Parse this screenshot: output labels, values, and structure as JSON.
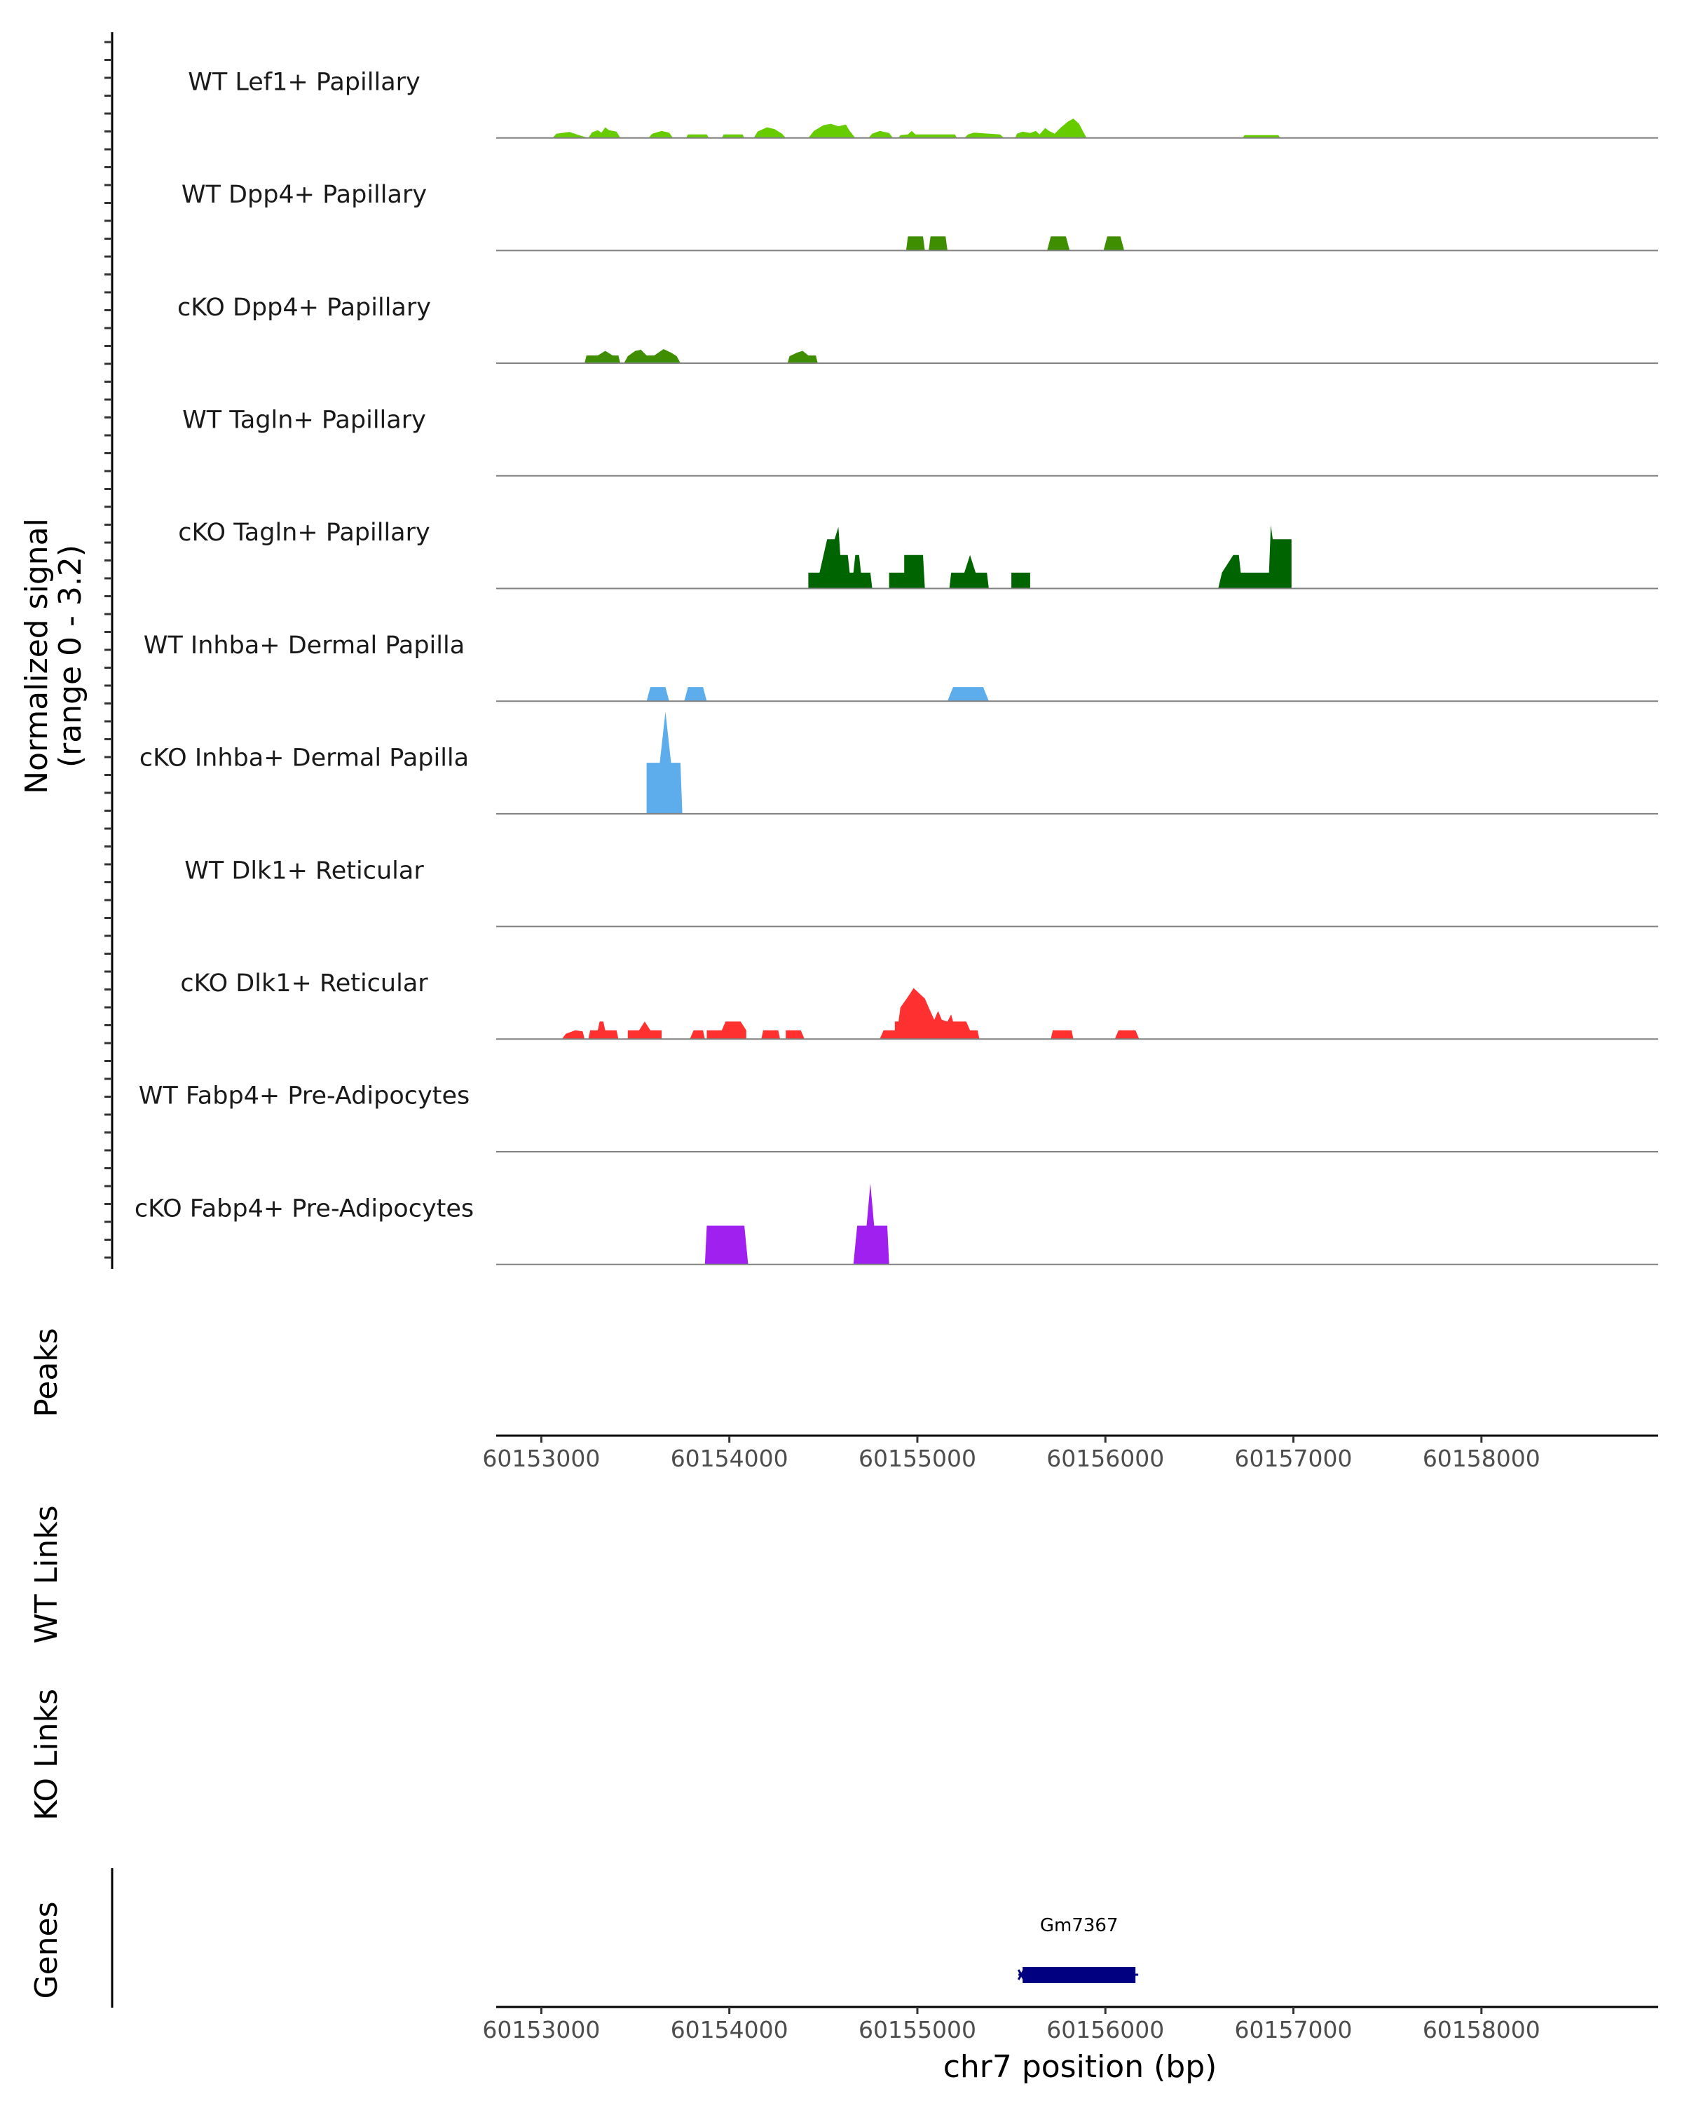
{
  "chart_data": {
    "type": "area",
    "chromosome": "chr7",
    "xlim": [
      60152760,
      60158940
    ],
    "signal_range": [
      0,
      3.2
    ],
    "y_axis_label": [
      "Normalized signal",
      "(range 0 - 3.2)"
    ],
    "x_axis_title": "chr7 position (bp)",
    "x_ticks": [
      60153000,
      60154000,
      60155000,
      60156000,
      60157000,
      60158000
    ],
    "x_tick_labels": [
      "60153000",
      "60154000",
      "60155000",
      "60156000",
      "60157000",
      "60158000"
    ],
    "section_labels": {
      "peaks": "Peaks",
      "wt_links": "WT Links",
      "ko_links": "KO Links",
      "genes": "Genes"
    },
    "tracks": [
      {
        "name": "WT Lef1+ Papillary",
        "color": "#66CC00",
        "points": [
          [
            60153060,
            0
          ],
          [
            60153080,
            0.12
          ],
          [
            60153150,
            0.17
          ],
          [
            60153200,
            0.08
          ],
          [
            60153250,
            0
          ],
          [
            60153270,
            0.16
          ],
          [
            60153300,
            0.22
          ],
          [
            60153320,
            0.15
          ],
          [
            60153340,
            0.3
          ],
          [
            60153360,
            0.22
          ],
          [
            60153400,
            0.18
          ],
          [
            60153420,
            0
          ],
          [
            60153570,
            0
          ],
          [
            60153590,
            0.12
          ],
          [
            60153640,
            0.2
          ],
          [
            60153680,
            0.15
          ],
          [
            60153700,
            0
          ],
          [
            60153770,
            0
          ],
          [
            60153780,
            0.1
          ],
          [
            60153880,
            0.1
          ],
          [
            60153890,
            0
          ],
          [
            60153960,
            0
          ],
          [
            60153970,
            0.1
          ],
          [
            60154070,
            0.1
          ],
          [
            60154080,
            0
          ],
          [
            60154130,
            0
          ],
          [
            60154150,
            0.18
          ],
          [
            60154200,
            0.3
          ],
          [
            60154240,
            0.25
          ],
          [
            60154280,
            0.12
          ],
          [
            60154300,
            0
          ],
          [
            60154420,
            0
          ],
          [
            60154450,
            0.2
          ],
          [
            60154500,
            0.36
          ],
          [
            60154540,
            0.4
          ],
          [
            60154580,
            0.33
          ],
          [
            60154620,
            0.38
          ],
          [
            60154640,
            0.2
          ],
          [
            60154670,
            0
          ],
          [
            60154740,
            0
          ],
          [
            60154760,
            0.12
          ],
          [
            60154800,
            0.2
          ],
          [
            60154850,
            0.14
          ],
          [
            60154870,
            0
          ],
          [
            60154900,
            0
          ],
          [
            60154910,
            0.08
          ],
          [
            60154950,
            0.1
          ],
          [
            60154970,
            0.2
          ],
          [
            60154990,
            0.1
          ],
          [
            60155200,
            0.1
          ],
          [
            60155210,
            0
          ],
          [
            60155250,
            0
          ],
          [
            60155270,
            0.1
          ],
          [
            60155300,
            0.15
          ],
          [
            60155440,
            0.1
          ],
          [
            60155460,
            0
          ],
          [
            60155520,
            0
          ],
          [
            60155530,
            0.12
          ],
          [
            60155560,
            0.18
          ],
          [
            60155600,
            0.14
          ],
          [
            60155630,
            0.2
          ],
          [
            60155650,
            0.1
          ],
          [
            60155680,
            0.28
          ],
          [
            60155700,
            0.2
          ],
          [
            60155730,
            0.12
          ],
          [
            60155760,
            0.28
          ],
          [
            60155800,
            0.46
          ],
          [
            60155830,
            0.55
          ],
          [
            60155860,
            0.4
          ],
          [
            60155880,
            0.2
          ],
          [
            60155900,
            0
          ],
          [
            60156730,
            0
          ],
          [
            60156740,
            0.08
          ],
          [
            60156920,
            0.08
          ],
          [
            60156930,
            0
          ]
        ]
      },
      {
        "name": "WT Dpp4+ Papillary",
        "color": "#3E8E00",
        "points": [
          [
            60154940,
            0
          ],
          [
            60154950,
            0.4
          ],
          [
            60155030,
            0.4
          ],
          [
            60155040,
            0
          ],
          [
            60155060,
            0
          ],
          [
            60155070,
            0.4
          ],
          [
            60155150,
            0.4
          ],
          [
            60155160,
            0
          ],
          [
            60155690,
            0
          ],
          [
            60155710,
            0.4
          ],
          [
            60155790,
            0.4
          ],
          [
            60155810,
            0
          ],
          [
            60155990,
            0
          ],
          [
            60156010,
            0.4
          ],
          [
            60156080,
            0.4
          ],
          [
            60156100,
            0
          ]
        ]
      },
      {
        "name": "cKO Dpp4+ Papillary",
        "color": "#3E8E00",
        "points": [
          [
            60153230,
            0
          ],
          [
            60153240,
            0.22
          ],
          [
            60153300,
            0.22
          ],
          [
            60153340,
            0.35
          ],
          [
            60153380,
            0.22
          ],
          [
            60153410,
            0.22
          ],
          [
            60153420,
            0
          ],
          [
            60153440,
            0
          ],
          [
            60153460,
            0.2
          ],
          [
            60153500,
            0.35
          ],
          [
            60153530,
            0.38
          ],
          [
            60153560,
            0.22
          ],
          [
            60153600,
            0.22
          ],
          [
            60153650,
            0.4
          ],
          [
            60153690,
            0.3
          ],
          [
            60153720,
            0.2
          ],
          [
            60153740,
            0
          ],
          [
            60154310,
            0
          ],
          [
            60154320,
            0.2
          ],
          [
            60154360,
            0.3
          ],
          [
            60154390,
            0.35
          ],
          [
            60154420,
            0.22
          ],
          [
            60154460,
            0.22
          ],
          [
            60154470,
            0
          ]
        ]
      },
      {
        "name": "WT Tagln+ Papillary",
        "color": "#006400",
        "points": []
      },
      {
        "name": "cKO Tagln+ Papillary",
        "color": "#006400",
        "points": [
          [
            60154420,
            0
          ],
          [
            60154420,
            0.45
          ],
          [
            60154480,
            0.45
          ],
          [
            60154520,
            1.4
          ],
          [
            60154560,
            1.4
          ],
          [
            60154580,
            1.75
          ],
          [
            60154590,
            0.95
          ],
          [
            60154630,
            0.95
          ],
          [
            60154640,
            0.45
          ],
          [
            60154660,
            0.45
          ],
          [
            60154670,
            0.95
          ],
          [
            60154690,
            0.95
          ],
          [
            60154700,
            0.45
          ],
          [
            60154750,
            0.45
          ],
          [
            60154760,
            0
          ],
          [
            60154850,
            0
          ],
          [
            60154850,
            0.45
          ],
          [
            60154930,
            0.45
          ],
          [
            60154930,
            0.95
          ],
          [
            60155030,
            0.95
          ],
          [
            60155040,
            0
          ],
          [
            60155170,
            0
          ],
          [
            60155180,
            0.45
          ],
          [
            60155250,
            0.45
          ],
          [
            60155280,
            0.95
          ],
          [
            60155310,
            0.45
          ],
          [
            60155370,
            0.45
          ],
          [
            60155380,
            0
          ],
          [
            60155500,
            0
          ],
          [
            60155500,
            0.45
          ],
          [
            60155600,
            0.45
          ],
          [
            60155600,
            0
          ],
          [
            60156600,
            0
          ],
          [
            60156620,
            0.45
          ],
          [
            60156680,
            0.95
          ],
          [
            60156710,
            0.95
          ],
          [
            60156720,
            0.45
          ],
          [
            60156870,
            0.45
          ],
          [
            60156880,
            1.8
          ],
          [
            60156890,
            1.4
          ],
          [
            60156990,
            1.4
          ],
          [
            60156990,
            0
          ]
        ]
      },
      {
        "name": "WT Inhba+ Dermal Papilla",
        "color": "#5DADEC",
        "points": [
          [
            60153560,
            0
          ],
          [
            60153580,
            0.4
          ],
          [
            60153660,
            0.4
          ],
          [
            60153680,
            0
          ],
          [
            60153760,
            0
          ],
          [
            60153780,
            0.4
          ],
          [
            60153860,
            0.4
          ],
          [
            60153880,
            0
          ],
          [
            60155160,
            0
          ],
          [
            60155190,
            0.4
          ],
          [
            60155350,
            0.4
          ],
          [
            60155380,
            0
          ]
        ]
      },
      {
        "name": "cKO Inhba+ Dermal Papilla",
        "color": "#5DADEC",
        "points": [
          [
            60153560,
            0
          ],
          [
            60153560,
            1.45
          ],
          [
            60153630,
            1.45
          ],
          [
            60153660,
            2.9
          ],
          [
            60153690,
            1.45
          ],
          [
            60153740,
            1.45
          ],
          [
            60153750,
            0
          ]
        ]
      },
      {
        "name": "WT Dlk1+ Reticular",
        "color": "#FF3030",
        "points": []
      },
      {
        "name": "cKO Dlk1+ Reticular",
        "color": "#FF3030",
        "points": [
          [
            60153110,
            0
          ],
          [
            60153130,
            0.15
          ],
          [
            60153180,
            0.25
          ],
          [
            60153220,
            0.22
          ],
          [
            60153230,
            0
          ],
          [
            60153250,
            0
          ],
          [
            60153260,
            0.25
          ],
          [
            60153300,
            0.25
          ],
          [
            60153310,
            0.5
          ],
          [
            60153330,
            0.5
          ],
          [
            60153340,
            0.25
          ],
          [
            60153400,
            0.25
          ],
          [
            60153410,
            0
          ],
          [
            60153460,
            0
          ],
          [
            60153460,
            0.25
          ],
          [
            60153520,
            0.25
          ],
          [
            60153550,
            0.5
          ],
          [
            60153580,
            0.25
          ],
          [
            60153640,
            0.25
          ],
          [
            60153640,
            0
          ],
          [
            60153790,
            0
          ],
          [
            60153810,
            0.25
          ],
          [
            60153860,
            0.25
          ],
          [
            60153870,
            0
          ],
          [
            60153880,
            0
          ],
          [
            60153880,
            0.25
          ],
          [
            60153960,
            0.25
          ],
          [
            60153980,
            0.5
          ],
          [
            60154060,
            0.5
          ],
          [
            60154090,
            0.25
          ],
          [
            60154090,
            0
          ],
          [
            60154170,
            0
          ],
          [
            60154180,
            0.25
          ],
          [
            60154260,
            0.25
          ],
          [
            60154270,
            0
          ],
          [
            60154300,
            0
          ],
          [
            60154300,
            0.25
          ],
          [
            60154380,
            0.25
          ],
          [
            60154400,
            0
          ],
          [
            60154800,
            0
          ],
          [
            60154820,
            0.25
          ],
          [
            60154880,
            0.25
          ],
          [
            60154880,
            0.5
          ],
          [
            60154900,
            0.5
          ],
          [
            60154910,
            0.9
          ],
          [
            60154950,
            1.2
          ],
          [
            60154980,
            1.45
          ],
          [
            60155010,
            1.3
          ],
          [
            60155040,
            1.15
          ],
          [
            60155060,
            0.9
          ],
          [
            60155090,
            0.55
          ],
          [
            60155110,
            0.8
          ],
          [
            60155130,
            0.55
          ],
          [
            60155160,
            0.5
          ],
          [
            60155180,
            0.7
          ],
          [
            60155190,
            0.5
          ],
          [
            60155260,
            0.5
          ],
          [
            60155280,
            0.25
          ],
          [
            60155320,
            0.25
          ],
          [
            60155330,
            0
          ],
          [
            60155710,
            0
          ],
          [
            60155720,
            0.25
          ],
          [
            60155820,
            0.25
          ],
          [
            60155830,
            0
          ],
          [
            60156050,
            0
          ],
          [
            60156070,
            0.25
          ],
          [
            60156160,
            0.25
          ],
          [
            60156180,
            0
          ]
        ]
      },
      {
        "name": "WT Fabp4+ Pre-Adipocytes",
        "color": "#A020F0",
        "points": []
      },
      {
        "name": "cKO Fabp4+ Pre-Adipocytes",
        "color": "#A020F0",
        "points": [
          [
            60153870,
            0
          ],
          [
            60153880,
            1.1
          ],
          [
            60154080,
            1.1
          ],
          [
            60154100,
            0
          ],
          [
            60154660,
            0
          ],
          [
            60154680,
            1.1
          ],
          [
            60154730,
            1.1
          ],
          [
            60154750,
            2.3
          ],
          [
            60154770,
            1.1
          ],
          [
            60154840,
            1.1
          ],
          [
            60154850,
            0
          ]
        ]
      }
    ],
    "genes": [
      {
        "name": "Gm7367",
        "start": 60155560,
        "end": 60156160,
        "color": "#000080"
      }
    ]
  }
}
